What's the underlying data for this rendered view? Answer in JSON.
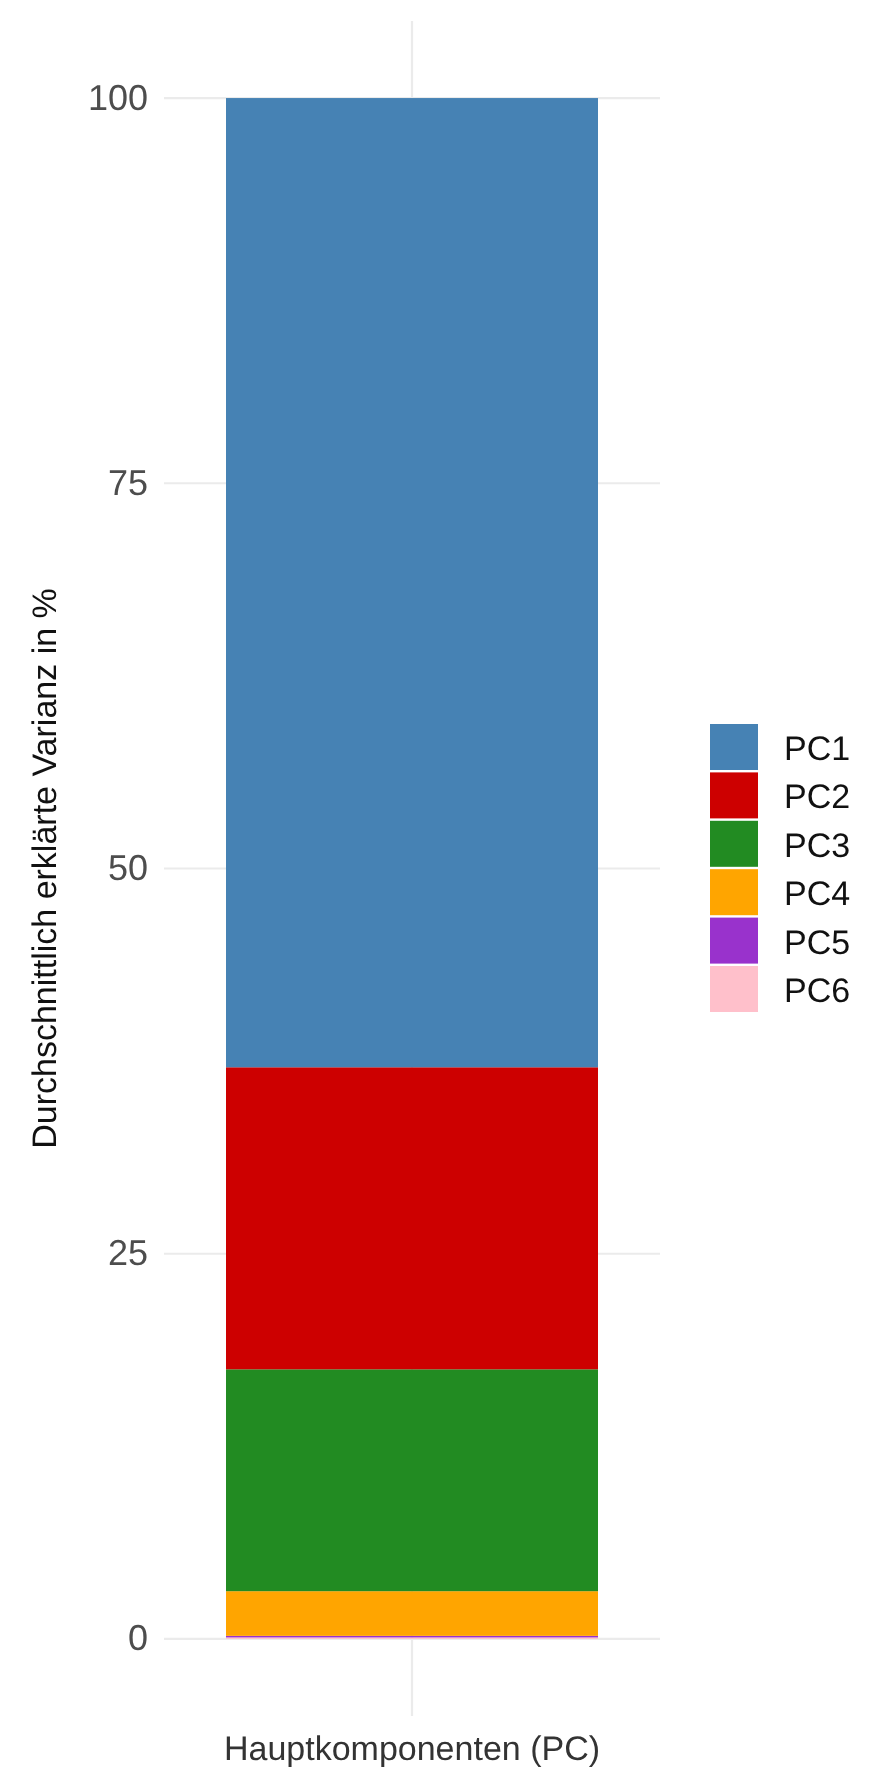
{
  "chart_data": {
    "type": "bar",
    "stacked": true,
    "xlabel": "Hauptkomponenten (PC)",
    "ylabel": "Durchschnittlich erklärte Varianz in %",
    "categories": [
      null
    ],
    "series": [
      {
        "name": "PC6",
        "color": "#ffc0cb",
        "values": [
          0.1
        ]
      },
      {
        "name": "PC5",
        "color": "#9932cc",
        "values": [
          0.1
        ]
      },
      {
        "name": "PC4",
        "color": "#ffa500",
        "values": [
          2.9
        ]
      },
      {
        "name": "PC3",
        "color": "#228b22",
        "values": [
          14.4
        ]
      },
      {
        "name": "PC2",
        "color": "#cd0000",
        "values": [
          19.6
        ]
      },
      {
        "name": "PC1",
        "color": "#4682b4",
        "values": [
          62.9
        ]
      }
    ],
    "ylim": [
      -5,
      105
    ],
    "yticks": [
      0,
      25,
      50,
      75,
      100
    ],
    "grid": true,
    "legend": "right"
  }
}
